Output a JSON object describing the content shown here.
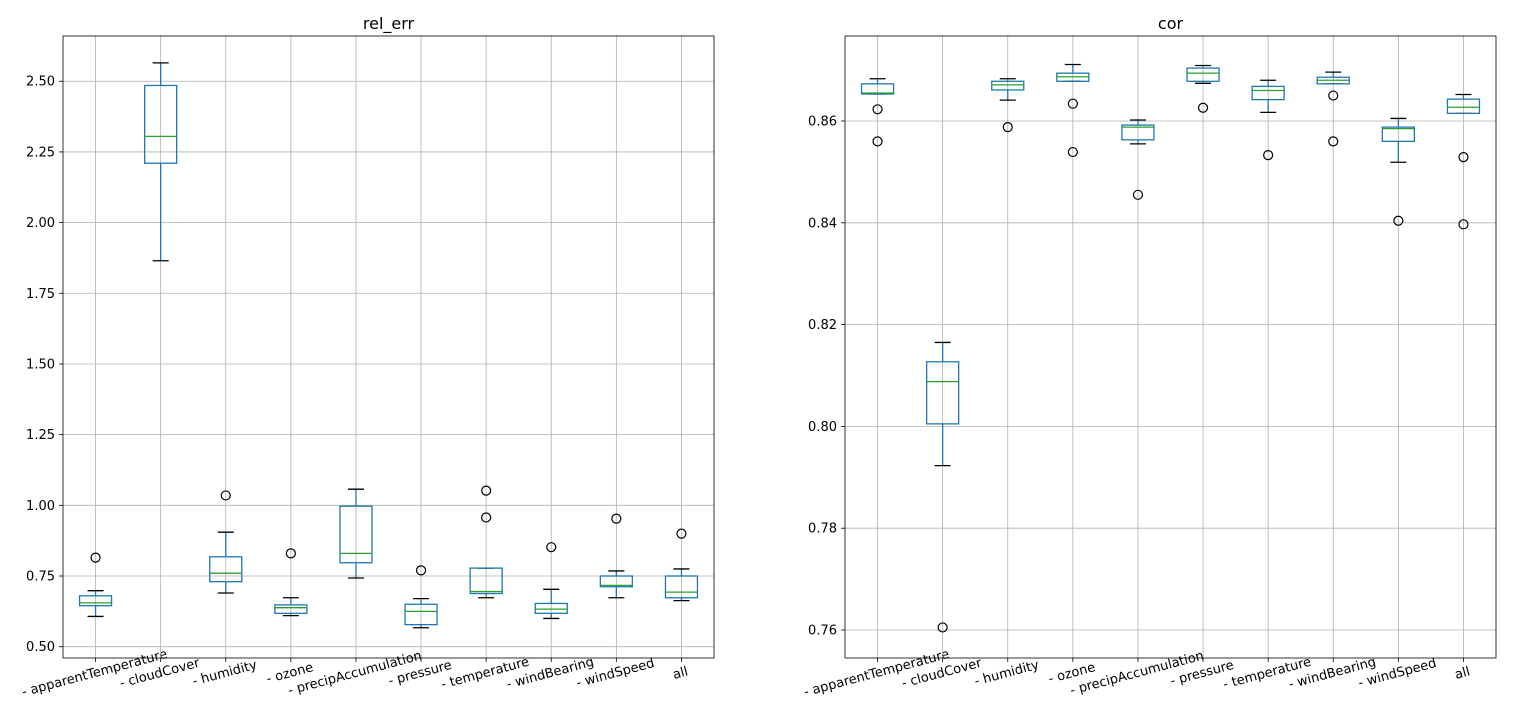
{
  "chart_data": [
    {
      "type": "box",
      "title": "rel_err",
      "xlabel": "",
      "ylabel": "",
      "grid": true,
      "ylim": [
        0.46,
        2.66
      ],
      "yticks": [
        "0.50",
        "0.75",
        "1.00",
        "1.25",
        "1.50",
        "1.75",
        "2.00",
        "2.25",
        "2.50"
      ],
      "categories": [
        "- apparentTemperature",
        "- cloudCover",
        "- humidity",
        "- ozone",
        "- precipAccumulation",
        "- pressure",
        "- temperature",
        "- windBearing",
        "- windSpeed",
        "all"
      ],
      "boxes": [
        {
          "whislo": 0.607,
          "q1": 0.645,
          "med": 0.655,
          "q3": 0.68,
          "whishi": 0.698,
          "fliers": [
            0.815
          ]
        },
        {
          "whislo": 1.865,
          "q1": 2.21,
          "med": 2.305,
          "q3": 2.485,
          "whishi": 2.565,
          "fliers": []
        },
        {
          "whislo": 0.69,
          "q1": 0.73,
          "med": 0.76,
          "q3": 0.818,
          "whishi": 0.905,
          "fliers": [
            1.035
          ]
        },
        {
          "whislo": 0.61,
          "q1": 0.618,
          "med": 0.638,
          "q3": 0.648,
          "whishi": 0.673,
          "fliers": [
            0.83
          ]
        },
        {
          "whislo": 0.743,
          "q1": 0.797,
          "med": 0.83,
          "q3": 0.997,
          "whishi": 1.057,
          "fliers": []
        },
        {
          "whislo": 0.567,
          "q1": 0.578,
          "med": 0.625,
          "q3": 0.65,
          "whishi": 0.67,
          "fliers": [
            0.77
          ]
        },
        {
          "whislo": 0.673,
          "q1": 0.688,
          "med": 0.695,
          "q3": 0.778,
          "whishi": 0.778,
          "fliers": [
            0.957,
            1.052
          ]
        },
        {
          "whislo": 0.6,
          "q1": 0.618,
          "med": 0.633,
          "q3": 0.653,
          "whishi": 0.703,
          "fliers": [
            0.852
          ]
        },
        {
          "whislo": 0.673,
          "q1": 0.712,
          "med": 0.717,
          "q3": 0.75,
          "whishi": 0.768,
          "fliers": [
            0.953
          ]
        },
        {
          "whislo": 0.663,
          "q1": 0.673,
          "med": 0.693,
          "q3": 0.75,
          "whishi": 0.775,
          "fliers": [
            0.9
          ]
        }
      ]
    },
    {
      "type": "box",
      "title": "cor",
      "xlabel": "",
      "ylabel": "",
      "grid": true,
      "ylim": [
        0.7545,
        0.8767
      ],
      "yticks": [
        "0.76",
        "0.78",
        "0.80",
        "0.82",
        "0.84",
        "0.86"
      ],
      "categories": [
        "- apparentTemperature",
        "- cloudCover",
        "- humidity",
        "- ozone",
        "- precipAccumulation",
        "- pressure",
        "- temperature",
        "- windBearing",
        "- windSpeed",
        "all"
      ],
      "boxes": [
        {
          "whislo": 0.8653,
          "q1": 0.8653,
          "med": 0.8655,
          "q3": 0.8673,
          "whishi": 0.8683,
          "fliers": [
            0.856,
            0.8623
          ]
        },
        {
          "whislo": 0.7923,
          "q1": 0.8005,
          "med": 0.8088,
          "q3": 0.8127,
          "whishi": 0.8165,
          "fliers": [
            0.7605
          ]
        },
        {
          "whislo": 0.8641,
          "q1": 0.8661,
          "med": 0.8671,
          "q3": 0.8678,
          "whishi": 0.8683,
          "fliers": [
            0.8588
          ]
        },
        {
          "whislo": 0.8678,
          "q1": 0.8678,
          "med": 0.8687,
          "q3": 0.8694,
          "whishi": 0.8711,
          "fliers": [
            0.8539,
            0.8634
          ]
        },
        {
          "whislo": 0.8555,
          "q1": 0.8563,
          "med": 0.8588,
          "q3": 0.8592,
          "whishi": 0.8602,
          "fliers": [
            0.8455
          ]
        },
        {
          "whislo": 0.8674,
          "q1": 0.8678,
          "med": 0.8694,
          "q3": 0.8704,
          "whishi": 0.8709,
          "fliers": [
            0.8626
          ]
        },
        {
          "whislo": 0.8617,
          "q1": 0.8642,
          "med": 0.866,
          "q3": 0.8668,
          "whishi": 0.868,
          "fliers": [
            0.8533
          ]
        },
        {
          "whislo": 0.8673,
          "q1": 0.8673,
          "med": 0.868,
          "q3": 0.8686,
          "whishi": 0.8696,
          "fliers": [
            0.856,
            0.865
          ]
        },
        {
          "whislo": 0.8519,
          "q1": 0.856,
          "med": 0.8585,
          "q3": 0.8588,
          "whishi": 0.8605,
          "fliers": [
            0.8404
          ]
        },
        {
          "whislo": 0.8615,
          "q1": 0.8615,
          "med": 0.8627,
          "q3": 0.8643,
          "whishi": 0.8652,
          "fliers": [
            0.8397,
            0.8529
          ]
        }
      ]
    }
  ],
  "colors": {
    "box": "#1f77b4",
    "median": "#2ca02c",
    "whisker": "#000000",
    "grid": "#b0b0b0",
    "flier": "#000000"
  }
}
